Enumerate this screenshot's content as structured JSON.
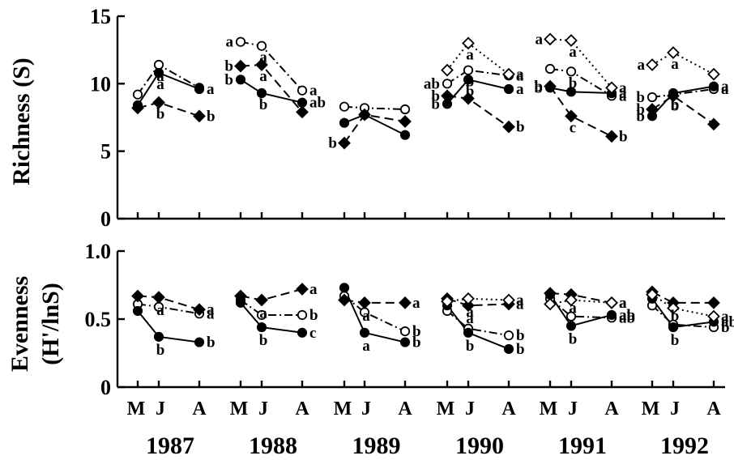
{
  "chart_data": [
    {
      "type": "line",
      "ylabel": "Richness (S)",
      "ylim": [
        0,
        15
      ],
      "yticks": [
        0,
        5,
        10,
        15
      ],
      "grid": false,
      "month_labels": [
        "M",
        "J",
        "A"
      ],
      "years": [
        "1987",
        "1988",
        "1989",
        "1990",
        "1991",
        "1992"
      ],
      "series": [
        {
          "marker": "open-circle",
          "line": "dash-dot",
          "values": {
            "1987": [
              9.2,
              11.4,
              9.7
            ],
            "1988": [
              13.1,
              12.8,
              9.5
            ],
            "1989": [
              8.3,
              8.2,
              8.1
            ],
            "1990": [
              10.0,
              11.0,
              10.6
            ],
            "1991": [
              11.1,
              10.9,
              9.1
            ],
            "1992": [
              9.0,
              9.2,
              9.6
            ]
          },
          "sig_labels": {
            "1987": [
              "",
              "a",
              ""
            ],
            "1988": [
              "a",
              "a",
              "a"
            ],
            "1990": [
              "ab",
              "b",
              "a"
            ],
            "1991": [
              "",
              "b",
              "a"
            ],
            "1992": [
              "b",
              "b",
              "a"
            ]
          }
        },
        {
          "marker": "filled-circle",
          "line": "solid",
          "values": {
            "1987": [
              8.4,
              10.8,
              9.6
            ],
            "1988": [
              10.3,
              9.3,
              8.6
            ],
            "1989": [
              7.1,
              7.7,
              6.2
            ],
            "1990": [
              8.5,
              10.3,
              9.6
            ],
            "1991": [
              9.7,
              9.4,
              9.3
            ],
            "1992": [
              7.6,
              9.3,
              9.8
            ]
          },
          "sig_labels": {
            "1987": [
              "",
              "a",
              "a"
            ],
            "1988": [
              "b",
              "b",
              "ab"
            ],
            "1990": [
              "b",
              "b",
              "a"
            ],
            "1991": [
              "b",
              "",
              "a"
            ],
            "1992": [
              "b",
              "b",
              "a"
            ]
          }
        },
        {
          "marker": "filled-diamond",
          "line": "dashed",
          "values": {
            "1987": [
              8.2,
              8.6,
              7.6
            ],
            "1988": [
              11.3,
              11.4,
              7.9
            ],
            "1989": [
              5.6,
              7.7,
              7.2
            ],
            "1990": [
              9.1,
              8.9,
              6.8
            ],
            "1991": [
              9.8,
              7.6,
              6.1
            ],
            "1992": [
              8.1,
              9.1,
              7.0
            ]
          },
          "sig_labels": {
            "1987": [
              "",
              "b",
              "b"
            ],
            "1988": [
              "b",
              "a",
              ""
            ],
            "1989": [
              "b",
              "",
              ""
            ],
            "1990": [
              "b",
              "",
              "b"
            ],
            "1991": [
              "b",
              "c",
              "b"
            ],
            "1992": [
              "b",
              "",
              ""
            ]
          }
        },
        {
          "marker": "open-diamond",
          "line": "dotted",
          "values": {
            "1990": [
              11.0,
              13.0,
              10.7
            ],
            "1991": [
              13.3,
              13.2,
              9.7
            ],
            "1992": [
              11.4,
              12.3,
              10.7
            ]
          },
          "sig_labels": {
            "1990": [
              "",
              "a",
              "a"
            ],
            "1991": [
              "a",
              "a",
              "a"
            ],
            "1992": [
              "a",
              "a",
              ""
            ]
          }
        }
      ]
    },
    {
      "type": "line",
      "ylabel": "Evenness",
      "ylabel2": "(H'/lnS)",
      "ylim": [
        0,
        1.0
      ],
      "yticks": [
        0,
        0.5,
        1.0
      ],
      "ytick_labels": [
        "0",
        "0.5",
        "1.0"
      ],
      "grid": false,
      "month_labels": [
        "M",
        "J",
        "A"
      ],
      "years": [
        "1987",
        "1988",
        "1989",
        "1990",
        "1991",
        "1992"
      ],
      "series": [
        {
          "marker": "open-circle",
          "line": "dash-dot",
          "values": {
            "1987": [
              0.61,
              0.59,
              0.54
            ],
            "1988": [
              0.64,
              0.53,
              0.53
            ],
            "1989": [
              0.67,
              0.55,
              0.41
            ],
            "1990": [
              0.56,
              0.43,
              0.38
            ],
            "1991": [
              0.65,
              0.52,
              0.51
            ],
            "1992": [
              0.6,
              0.46,
              0.44
            ]
          },
          "sig_labels": {
            "1987": [
              "",
              "",
              "a"
            ],
            "1988": [
              "",
              "",
              "b"
            ],
            "1989": [
              "",
              "",
              "b"
            ],
            "1990": [
              "",
              "",
              "b"
            ],
            "1991": [
              "",
              "",
              "ab"
            ],
            "1992": [
              "",
              "",
              "b"
            ]
          }
        },
        {
          "marker": "filled-circle",
          "line": "solid",
          "values": {
            "1987": [
              0.56,
              0.37,
              0.33
            ],
            "1988": [
              0.62,
              0.44,
              0.4
            ],
            "1989": [
              0.73,
              0.4,
              0.33
            ],
            "1990": [
              0.6,
              0.4,
              0.28
            ],
            "1991": [
              0.68,
              0.45,
              0.53
            ],
            "1992": [
              0.65,
              0.44,
              0.48
            ]
          },
          "sig_labels": {
            "1987": [
              "",
              "b",
              "b"
            ],
            "1988": [
              "",
              "b",
              "c"
            ],
            "1989": [
              "",
              "a",
              "b"
            ],
            "1990": [
              "",
              "b",
              "b"
            ],
            "1991": [
              "",
              "b",
              "ab"
            ],
            "1992": [
              "",
              "b",
              "ab"
            ]
          }
        },
        {
          "marker": "filled-diamond",
          "line": "dashed",
          "values": {
            "1987": [
              0.67,
              0.66,
              0.57
            ],
            "1988": [
              0.67,
              0.64,
              0.72
            ],
            "1989": [
              0.64,
              0.62,
              0.62
            ],
            "1990": [
              0.65,
              0.6,
              0.61
            ],
            "1991": [
              0.69,
              0.68,
              0.62
            ],
            "1992": [
              0.7,
              0.62,
              0.62
            ]
          },
          "sig_labels": {
            "1987": [
              "",
              "a",
              "a"
            ],
            "1988": [
              "",
              "a",
              "a"
            ],
            "1989": [
              "",
              "a",
              "a"
            ],
            "1990": [
              "",
              "a",
              "a"
            ],
            "1991": [
              "",
              "a",
              "a"
            ],
            "1992": [
              "",
              "b",
              ""
            ]
          }
        },
        {
          "marker": "open-diamond",
          "line": "dotted",
          "values": {
            "1990": [
              0.63,
              0.65,
              0.64
            ],
            "1991": [
              0.61,
              0.64,
              0.62
            ],
            "1992": [
              0.68,
              0.58,
              0.52
            ]
          },
          "sig_labels": {
            "1990": [
              "",
              "a",
              "a"
            ],
            "1991": [
              "",
              "",
              "a"
            ],
            "1992": [
              "",
              "",
              "a"
            ]
          }
        }
      ]
    }
  ]
}
